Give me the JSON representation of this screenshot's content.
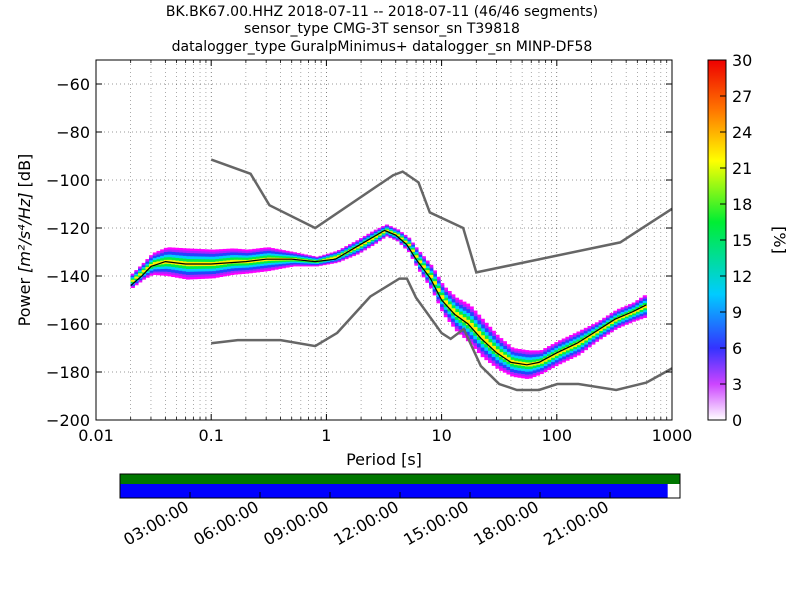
{
  "title_lines": [
    "BK.BK67.00.HHZ   2018-07-11 -- 2018-07-11  (46/46 segments)",
    "sensor_type CMG-3T sensor_sn T39818",
    "datalogger_type GuralpMinimus+ datalogger_sn MINP-DF58"
  ],
  "chart_data": {
    "type": "heatmap",
    "xlabel": "Period [s]",
    "ylabel_prefix": "Power",
    "ylabel_math": "[m²/s⁴/Hz]",
    "ylabel_suffix": "[dB]",
    "xscale": "log",
    "xlim": [
      0.01,
      1000
    ],
    "ylim": [
      -200,
      -50
    ],
    "xticks": [
      {
        "value": 0.01,
        "label": "0.01"
      },
      {
        "value": 0.1,
        "label": "0.1"
      },
      {
        "value": 1,
        "label": "1"
      },
      {
        "value": 10,
        "label": "10"
      },
      {
        "value": 100,
        "label": "100"
      },
      {
        "value": 1000,
        "label": "1000"
      }
    ],
    "yticks": [
      {
        "value": -60,
        "label": "−60"
      },
      {
        "value": -80,
        "label": "−80"
      },
      {
        "value": -100,
        "label": "−100"
      },
      {
        "value": -120,
        "label": "−120"
      },
      {
        "value": -140,
        "label": "−140"
      },
      {
        "value": -160,
        "label": "−160"
      },
      {
        "value": -180,
        "label": "−180"
      },
      {
        "value": -200,
        "label": "−200"
      }
    ],
    "grid": "dotted",
    "colorbar": {
      "label": "[%]",
      "range": [
        0,
        30
      ],
      "ticks": [
        "0",
        "3",
        "6",
        "9",
        "12",
        "15",
        "18",
        "21",
        "24",
        "27",
        "30"
      ]
    },
    "nhnm": [
      [
        0.1,
        -91.5
      ],
      [
        0.22,
        -97.4
      ],
      [
        0.32,
        -110.5
      ],
      [
        0.8,
        -120
      ],
      [
        3.8,
        -98
      ],
      [
        4.6,
        -96.5
      ],
      [
        6.3,
        -101
      ],
      [
        7.9,
        -113.5
      ],
      [
        15.4,
        -120
      ],
      [
        20,
        -138.5
      ],
      [
        354.8,
        -126
      ],
      [
        1000,
        -112
      ]
    ],
    "nlnm": [
      [
        0.1,
        -168
      ],
      [
        0.17,
        -166.7
      ],
      [
        0.4,
        -166.7
      ],
      [
        0.8,
        -169.2
      ],
      [
        1.24,
        -163.7
      ],
      [
        2.4,
        -148.6
      ],
      [
        4.3,
        -141.1
      ],
      [
        5,
        -141.1
      ],
      [
        6,
        -149
      ],
      [
        10,
        -163.8
      ],
      [
        12,
        -166.2
      ],
      [
        15.6,
        -162.1
      ],
      [
        21.9,
        -177.5
      ],
      [
        31.6,
        -185
      ],
      [
        45,
        -187.5
      ],
      [
        70,
        -187.5
      ],
      [
        101,
        -185
      ],
      [
        154,
        -185
      ],
      [
        328,
        -187.5
      ],
      [
        600,
        -184.4
      ],
      [
        1000,
        -178.5
      ]
    ],
    "mode_curve": [
      [
        0.02,
        -144
      ],
      [
        0.025,
        -140
      ],
      [
        0.03,
        -136
      ],
      [
        0.04,
        -134
      ],
      [
        0.06,
        -135
      ],
      [
        0.1,
        -135
      ],
      [
        0.2,
        -134
      ],
      [
        0.3,
        -133
      ],
      [
        0.5,
        -133
      ],
      [
        0.8,
        -134
      ],
      [
        1.2,
        -133
      ],
      [
        1.8,
        -128
      ],
      [
        2.5,
        -124
      ],
      [
        3.2,
        -121
      ],
      [
        4,
        -123
      ],
      [
        5,
        -127
      ],
      [
        6,
        -133
      ],
      [
        8,
        -141
      ],
      [
        10,
        -150
      ],
      [
        13,
        -156
      ],
      [
        17,
        -160
      ],
      [
        22,
        -166
      ],
      [
        30,
        -172
      ],
      [
        40,
        -176
      ],
      [
        55,
        -177
      ],
      [
        70,
        -176
      ],
      [
        100,
        -172
      ],
      [
        150,
        -168
      ],
      [
        220,
        -163
      ],
      [
        320,
        -158
      ],
      [
        450,
        -155
      ],
      [
        600,
        -152
      ]
    ],
    "heatmap_band": [
      {
        "x": 0.02,
        "y": -142,
        "h": 6
      },
      {
        "x": 0.025,
        "y": -138,
        "h": 7
      },
      {
        "x": 0.03,
        "y": -135,
        "h": 9
      },
      {
        "x": 0.04,
        "y": -134,
        "h": 12
      },
      {
        "x": 0.06,
        "y": -135,
        "h": 13
      },
      {
        "x": 0.1,
        "y": -135,
        "h": 12
      },
      {
        "x": 0.15,
        "y": -134,
        "h": 11
      },
      {
        "x": 0.2,
        "y": -134,
        "h": 10
      },
      {
        "x": 0.3,
        "y": -133,
        "h": 10
      },
      {
        "x": 0.5,
        "y": -133,
        "h": 6
      },
      {
        "x": 0.8,
        "y": -134,
        "h": 4
      },
      {
        "x": 1.2,
        "y": -132,
        "h": 5
      },
      {
        "x": 1.8,
        "y": -128,
        "h": 6
      },
      {
        "x": 2.5,
        "y": -124,
        "h": 6
      },
      {
        "x": 3.2,
        "y": -121,
        "h": 5
      },
      {
        "x": 4,
        "y": -123,
        "h": 5
      },
      {
        "x": 5,
        "y": -127,
        "h": 6
      },
      {
        "x": 6,
        "y": -133,
        "h": 8
      },
      {
        "x": 8,
        "y": -141,
        "h": 10
      },
      {
        "x": 10,
        "y": -150,
        "h": 12
      },
      {
        "x": 13,
        "y": -156,
        "h": 14
      },
      {
        "x": 17,
        "y": -160,
        "h": 16
      },
      {
        "x": 22,
        "y": -166,
        "h": 16
      },
      {
        "x": 30,
        "y": -172,
        "h": 14
      },
      {
        "x": 40,
        "y": -176,
        "h": 12
      },
      {
        "x": 55,
        "y": -177,
        "h": 12
      },
      {
        "x": 70,
        "y": -176,
        "h": 10
      },
      {
        "x": 100,
        "y": -172,
        "h": 10
      },
      {
        "x": 150,
        "y": -168,
        "h": 10
      },
      {
        "x": 220,
        "y": -163,
        "h": 8
      },
      {
        "x": 320,
        "y": -158,
        "h": 8
      },
      {
        "x": 450,
        "y": -155,
        "h": 8
      },
      {
        "x": 600,
        "y": -152,
        "h": 10
      }
    ],
    "availability": {
      "time_labels": [
        "03:00:00",
        "06:00:00",
        "09:00:00",
        "12:00:00",
        "15:00:00",
        "18:00:00",
        "21:00:00"
      ],
      "time_hours": [
        3,
        6,
        9,
        12,
        15,
        18,
        21
      ],
      "top_bar_color": "#007700",
      "bottom_bar_color": "#0000ff",
      "bottom_fraction": 0.978
    }
  }
}
